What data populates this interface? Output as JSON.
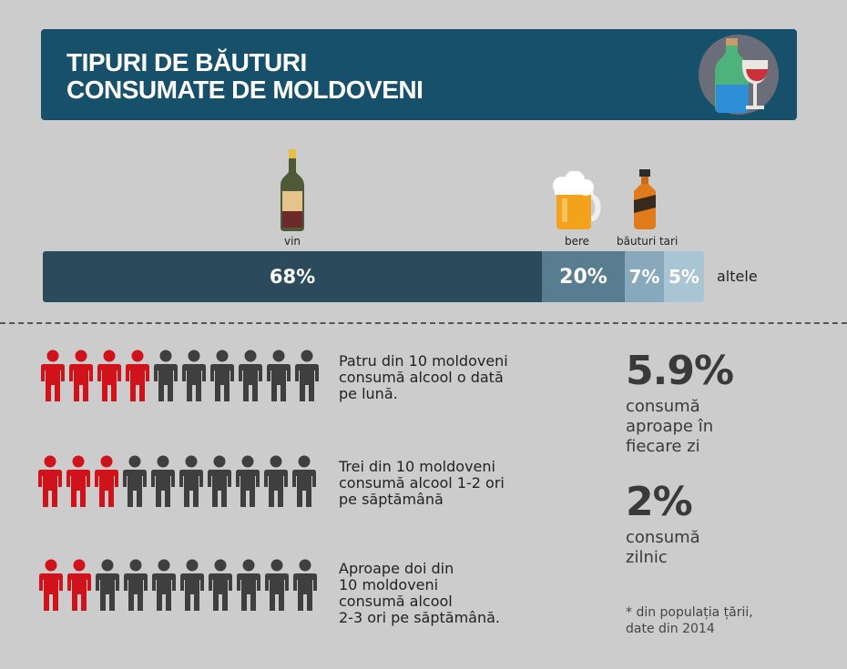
{
  "header": {
    "title_line1": "TIPURI DE BĂUTURI",
    "title_line2": "CONSUMATE DE MOLDOVENI"
  },
  "chart_data": {
    "type": "bar",
    "orientation": "stacked-horizontal",
    "categories": [
      "vin",
      "bere",
      "băuturi tari",
      "altele"
    ],
    "values": [
      68,
      20,
      7,
      5
    ],
    "value_labels": [
      "68%",
      "20%",
      "7%",
      "5%"
    ],
    "colors": [
      "#2b4a5c",
      "#587d91",
      "#88a9bc",
      "#a9c4d3"
    ],
    "icons": [
      "wine-bottle-icon",
      "beer-mug-icon",
      "whiskey-bottle-icon",
      ""
    ]
  },
  "frequency": [
    {
      "red": 4,
      "total": 10,
      "lines": [
        "Patru din 10 moldoveni",
        "consumă alcool o dată",
        "pe lună."
      ]
    },
    {
      "red": 3,
      "total": 10,
      "lines": [
        "Trei din 10 moldoveni",
        "consumă alcool 1-2 ori",
        "pe săptămână"
      ]
    },
    {
      "red": 2,
      "total": 10,
      "lines": [
        "Aproape doi din",
        "10 moldoveni",
        "consumă alcool",
        "2-3 ori pe săptămână."
      ]
    }
  ],
  "stats": [
    {
      "value": "5.9%",
      "caption_lines": [
        "consumă",
        "aproape în",
        "fiecare zi"
      ]
    },
    {
      "value": "2%",
      "caption_lines": [
        "consumă",
        "zilnic"
      ]
    }
  ],
  "footnote": {
    "line1": "* din populația țării,",
    "line2": "date din 2014"
  },
  "colors": {
    "banner": "#17506b",
    "person_red": "#d0121b",
    "person_dark": "#3f3f3f"
  }
}
